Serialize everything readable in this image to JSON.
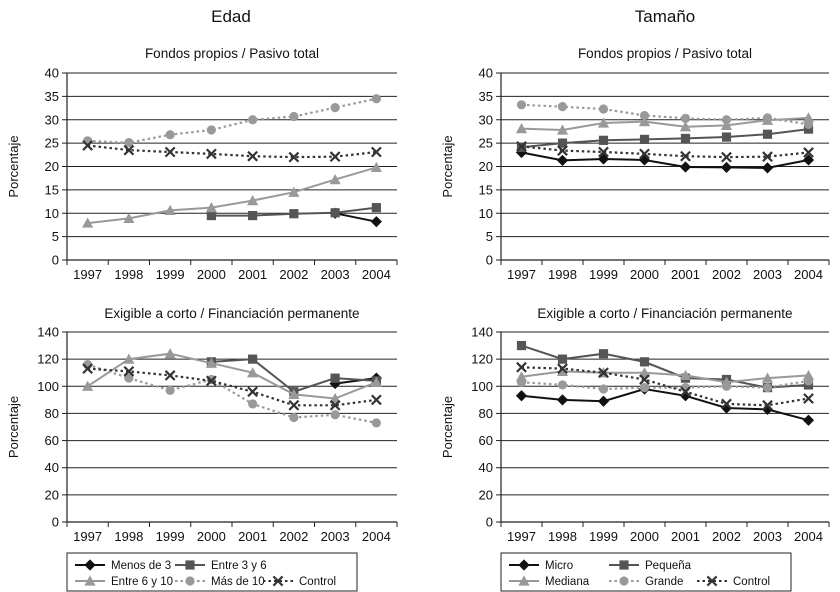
{
  "columns": [
    {
      "title": "Edad"
    },
    {
      "title": "Tamaño"
    }
  ],
  "chart_data": [
    {
      "id": "edad-fondos",
      "type": "line",
      "title": "Fondos propios / Pasivo total",
      "xlabel": "",
      "ylabel": "Porcentaje",
      "categories": [
        "1997",
        "1998",
        "1999",
        "2000",
        "2001",
        "2002",
        "2003",
        "2004"
      ],
      "ylim": [
        0,
        40
      ],
      "yticks": [
        0,
        5,
        10,
        15,
        20,
        25,
        30,
        35,
        40
      ],
      "grid": true,
      "series": [
        {
          "name": "Menos de 3",
          "values": [
            null,
            null,
            null,
            null,
            null,
            null,
            10,
            8.2
          ]
        },
        {
          "name": "Entre 3 y 6",
          "values": [
            null,
            null,
            null,
            9.5,
            9.5,
            9.9,
            10.1,
            11.2
          ]
        },
        {
          "name": "Entre 6 y 10",
          "values": [
            7.9,
            8.9,
            10.6,
            11.2,
            12.7,
            14.5,
            17.2,
            19.8
          ]
        },
        {
          "name": "Más de 10",
          "values": [
            25.5,
            25.1,
            26.8,
            27.8,
            30.0,
            30.7,
            32.6,
            34.5
          ]
        },
        {
          "name": "Control",
          "values": [
            24.5,
            23.5,
            23.1,
            22.7,
            22.2,
            22.0,
            22.1,
            23.1
          ]
        }
      ]
    },
    {
      "id": "tamano-fondos",
      "type": "line",
      "title": "Fondos propios / Pasivo total",
      "xlabel": "",
      "ylabel": "Porcentaje",
      "categories": [
        "1997",
        "1998",
        "1999",
        "2000",
        "2001",
        "2002",
        "2003",
        "2004"
      ],
      "ylim": [
        0,
        40
      ],
      "yticks": [
        0,
        5,
        10,
        15,
        20,
        25,
        30,
        35,
        40
      ],
      "grid": true,
      "series": [
        {
          "name": "Micro",
          "values": [
            23.0,
            21.3,
            21.6,
            21.4,
            19.9,
            19.8,
            19.7,
            21.4
          ]
        },
        {
          "name": "Pequeña",
          "values": [
            24.1,
            25.0,
            25.6,
            25.8,
            26.0,
            26.3,
            26.9,
            28.0
          ]
        },
        {
          "name": "Mediana",
          "values": [
            28.1,
            27.8,
            29.3,
            29.6,
            28.5,
            28.8,
            29.9,
            30.4
          ]
        },
        {
          "name": "Grande",
          "values": [
            33.2,
            32.8,
            32.3,
            30.9,
            30.3,
            30.0,
            30.4,
            29.0
          ]
        },
        {
          "name": "Control",
          "values": [
            24.3,
            23.4,
            23.1,
            22.7,
            22.2,
            22.0,
            22.1,
            23.0
          ]
        }
      ]
    },
    {
      "id": "edad-exigible",
      "type": "line",
      "title": "Exigible a corto / Financiación permanente",
      "xlabel": "",
      "ylabel": "Porcentaje",
      "categories": [
        "1997",
        "1998",
        "1999",
        "2000",
        "2001",
        "2002",
        "2003",
        "2004"
      ],
      "ylim": [
        0,
        140
      ],
      "yticks": [
        0,
        20,
        40,
        60,
        80,
        100,
        120,
        140
      ],
      "grid": true,
      "series": [
        {
          "name": "Menos de 3",
          "values": [
            null,
            null,
            null,
            null,
            null,
            null,
            102,
            106
          ]
        },
        {
          "name": "Entre 3 y 6",
          "values": [
            null,
            null,
            null,
            118,
            120,
            96,
            106,
            104
          ]
        },
        {
          "name": "Entre 6 y 10",
          "values": [
            100,
            120,
            124,
            117,
            110,
            94,
            91,
            103
          ]
        },
        {
          "name": "Más de 10",
          "values": [
            116,
            106,
            97,
            105,
            87,
            77,
            79,
            73
          ]
        },
        {
          "name": "Control",
          "values": [
            113,
            111,
            108,
            104,
            96,
            86,
            86,
            90
          ]
        }
      ]
    },
    {
      "id": "tamano-exigible",
      "type": "line",
      "title": "Exigible a corto / Financiación permanente",
      "xlabel": "",
      "ylabel": "Porcentaje",
      "categories": [
        "1997",
        "1998",
        "1999",
        "2000",
        "2001",
        "2002",
        "2003",
        "2004"
      ],
      "ylim": [
        0,
        140
      ],
      "yticks": [
        0,
        20,
        40,
        60,
        80,
        100,
        120,
        140
      ],
      "grid": true,
      "series": [
        {
          "name": "Micro",
          "values": [
            93,
            90,
            89,
            98,
            93,
            84,
            83,
            75
          ]
        },
        {
          "name": "Pequeña",
          "values": [
            130,
            120,
            124,
            118,
            106,
            105,
            99,
            101
          ]
        },
        {
          "name": "Mediana",
          "values": [
            107,
            111,
            110,
            110,
            108,
            103,
            106,
            108
          ]
        },
        {
          "name": "Grande",
          "values": [
            103,
            101,
            98,
            99,
            99,
            100,
            99,
            104
          ]
        },
        {
          "name": "Control",
          "values": [
            114,
            113,
            110,
            105,
            96,
            87,
            86,
            91
          ]
        }
      ]
    }
  ],
  "legends": [
    {
      "id": "legend-edad",
      "items": [
        {
          "label": "Menos de 3",
          "marker": "diamond-icon",
          "style": "solid",
          "color": "#111111"
        },
        {
          "label": "Entre 3 y 6",
          "marker": "square-icon",
          "style": "solid",
          "color": "#555555"
        },
        {
          "label": "Entre 6 y 10",
          "marker": "triangle-icon",
          "style": "solid",
          "color": "#999999"
        },
        {
          "label": "Más de 10",
          "marker": "circle-icon",
          "style": "dotted",
          "color": "#999999"
        },
        {
          "label": "Control",
          "marker": "x-icon",
          "style": "dotted",
          "color": "#333333"
        }
      ]
    },
    {
      "id": "legend-tamano",
      "items": [
        {
          "label": "Micro",
          "marker": "diamond-icon",
          "style": "solid",
          "color": "#111111"
        },
        {
          "label": "Pequeña",
          "marker": "square-icon",
          "style": "solid",
          "color": "#555555"
        },
        {
          "label": "Mediana",
          "marker": "triangle-icon",
          "style": "solid",
          "color": "#999999"
        },
        {
          "label": "Grande",
          "marker": "circle-icon",
          "style": "dotted",
          "color": "#999999"
        },
        {
          "label": "Control",
          "marker": "x-icon",
          "style": "dotted",
          "color": "#333333"
        }
      ]
    }
  ],
  "series_styles": [
    {
      "marker": "diamond-icon",
      "style": "solid",
      "color": "#111111"
    },
    {
      "marker": "square-icon",
      "style": "solid",
      "color": "#555555"
    },
    {
      "marker": "triangle-icon",
      "style": "solid",
      "color": "#999999"
    },
    {
      "marker": "circle-icon",
      "style": "dotted",
      "color": "#999999"
    },
    {
      "marker": "x-icon",
      "style": "dotted",
      "color": "#333333"
    }
  ]
}
